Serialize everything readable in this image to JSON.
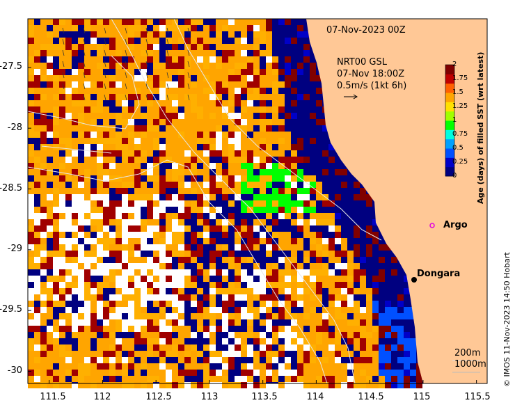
{
  "timestamp_label": "07-Nov-2023 00Z",
  "current_legend": {
    "line1": "NRT00 GSL",
    "line2": "07-Nov 18:00Z",
    "line3": "0.5m/s (1kt 6h)"
  },
  "colorbar": {
    "title": "Age (days) of filled SST (wrt latest)",
    "ticks": [
      "2",
      "1.75",
      "1.5",
      "1.25",
      "1",
      "0.75",
      "0.5",
      "0.25",
      "0"
    ],
    "tick_values": [
      2,
      1.75,
      1.5,
      1.25,
      1,
      0.75,
      0.5,
      0.25,
      0
    ],
    "range": [
      0,
      2
    ],
    "colors": [
      "#000080",
      "#0000c8",
      "#0050ff",
      "#00a0ff",
      "#00ffe0",
      "#00ff00",
      "#a0ff00",
      "#ffe000",
      "#ffa500",
      "#ff6000",
      "#c00000",
      "#800000"
    ]
  },
  "y_axis": {
    "ticks": [
      "-27.5",
      "-28",
      "-28.5",
      "-29",
      "-29.5",
      "-30"
    ],
    "tick_values": [
      -27.5,
      -28,
      -28.5,
      -29,
      -29.5,
      -30
    ],
    "range": [
      -27.1,
      -30.1
    ]
  },
  "x_axis": {
    "ticks": [
      "111.5",
      "112",
      "112.5",
      "113",
      "113.5",
      "114",
      "114.5",
      "115",
      "115.5"
    ],
    "tick_values": [
      111.5,
      112,
      112.5,
      113,
      113.5,
      114,
      114.5,
      115,
      115.5
    ],
    "range": [
      111.3,
      115.6
    ]
  },
  "places": [
    {
      "name": "Argo",
      "lon": 115.15,
      "lat": -28.85,
      "marker": "magenta-circle"
    },
    {
      "name": "Dongara",
      "lon": 114.93,
      "lat": -29.25,
      "marker": "black-dot"
    }
  ],
  "isobaths": {
    "line1": "200m",
    "line2": "1000m"
  },
  "credit": "© IMOS 11-Nov-2023 14:50 Hobart",
  "colors": {
    "land": "#ffc896",
    "deep_ocean": "#000080",
    "no_data": "#ffffff"
  }
}
